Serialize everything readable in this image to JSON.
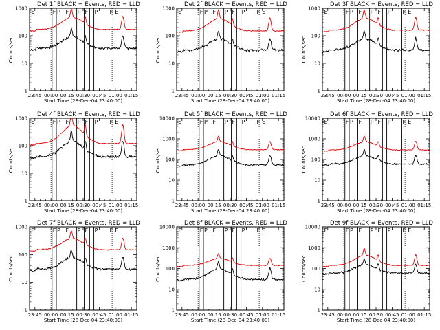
{
  "figure": {
    "time_ticks": [
      "23:45",
      "00:00",
      "00:15",
      "00:30",
      "00:45",
      "01:00",
      "01:15"
    ],
    "y_ticks": [
      "1",
      "10",
      "100",
      "1000"
    ],
    "y_ticks_wide": [
      "1",
      "10",
      "100",
      "1000",
      "10000"
    ],
    "flag_letters": [
      "E",
      "F",
      "P",
      "F",
      "P",
      "F",
      "P",
      "F",
      "E"
    ]
  },
  "chart_data": [
    {
      "type": "line",
      "title": "Det 1f BLACK = Events, RED = LLD",
      "xlabel": "Start Time (28-Dec-04 23:40:00)",
      "ylabel": "Counts/sec",
      "ylim": [
        1,
        1000
      ],
      "yscale": "log",
      "xlim_minutes_after_start": [
        0,
        100
      ],
      "series": [
        {
          "name": "Events",
          "color": "#000000",
          "baseline": 35,
          "peak": 110
        },
        {
          "name": "LLD",
          "color": "#dd0000",
          "baseline": 170,
          "peak": 560
        }
      ],
      "interval_lines_min": [
        21,
        25,
        33,
        44,
        51,
        56,
        60,
        74,
        76
      ]
    },
    {
      "type": "line",
      "title": "Det 2f BLACK = Events, RED = LLD",
      "xlabel": "Start Time (28-Dec-04 23:40:00)",
      "ylabel": "Counts/sec",
      "ylim": [
        1,
        1000
      ],
      "yscale": "log",
      "xlim_minutes_after_start": [
        0,
        100
      ],
      "series": [
        {
          "name": "Events",
          "color": "#000000",
          "baseline": 30,
          "peak": 90
        },
        {
          "name": "LLD",
          "color": "#dd0000",
          "baseline": 150,
          "peak": 500
        }
      ],
      "interval_lines_min": [
        21,
        25,
        33,
        44,
        51,
        56,
        60,
        74,
        76
      ]
    },
    {
      "type": "line",
      "title": "Det 3f BLACK = Events, RED = LLD",
      "xlabel": "Start Time (28-Dec-04 23:40:00)",
      "ylabel": "Counts/sec",
      "ylim": [
        1,
        1000
      ],
      "yscale": "log",
      "xlim_minutes_after_start": [
        0,
        100
      ],
      "series": [
        {
          "name": "Events",
          "color": "#000000",
          "baseline": 30,
          "peak": 90
        },
        {
          "name": "LLD",
          "color": "#dd0000",
          "baseline": 160,
          "peak": 520
        }
      ],
      "interval_lines_min": [
        21,
        25,
        33,
        44,
        51,
        56,
        60,
        74,
        76
      ]
    },
    {
      "type": "line",
      "title": "Det 4f BLACK = Events, RED = LLD",
      "xlabel": "Start Time (28-Dec-04 23:40:00)",
      "ylabel": "Counts/sec",
      "ylim": [
        1,
        1000
      ],
      "yscale": "log",
      "xlim_minutes_after_start": [
        0,
        100
      ],
      "series": [
        {
          "name": "Events",
          "color": "#000000",
          "baseline": 40,
          "peak": 180
        },
        {
          "name": "LLD",
          "color": "#dd0000",
          "baseline": 120,
          "peak": 700
        }
      ],
      "interval_lines_min": [
        21,
        25,
        33,
        44,
        51,
        56,
        60,
        74,
        76
      ]
    },
    {
      "type": "line",
      "title": "Det 5f BLACK = Events, RED = LLD",
      "xlabel": "Start Time (28-Dec-04 23:40:00)",
      "ylabel": "Counts/sec",
      "ylim": [
        1,
        10000
      ],
      "yscale": "log",
      "xlim_minutes_after_start": [
        0,
        100
      ],
      "series": [
        {
          "name": "Events",
          "color": "#000000",
          "baseline": 55,
          "peak": 180
        },
        {
          "name": "LLD",
          "color": "#dd0000",
          "baseline": 300,
          "peak": 850
        }
      ],
      "interval_lines_min": [
        21,
        25,
        33,
        44,
        51,
        56,
        60,
        74,
        76
      ]
    },
    {
      "type": "line",
      "title": "Det 6f BLACK = Events, RED = LLD",
      "xlabel": "Start Time (28-Dec-04 23:40:00)",
      "ylabel": "Counts/sec",
      "ylim": [
        1,
        10000
      ],
      "yscale": "log",
      "xlim_minutes_after_start": [
        0,
        100
      ],
      "series": [
        {
          "name": "Events",
          "color": "#000000",
          "baseline": 60,
          "peak": 180
        },
        {
          "name": "LLD",
          "color": "#dd0000",
          "baseline": 290,
          "peak": 850
        }
      ],
      "interval_lines_min": [
        21,
        25,
        33,
        44,
        51,
        56,
        60,
        74,
        76
      ]
    },
    {
      "type": "line",
      "title": "Det 7f BLACK = Events, RED = LLD",
      "xlabel": "Start Time (28-Dec-04 23:40:00)",
      "ylabel": "Counts/sec",
      "ylim": [
        1,
        1000
      ],
      "yscale": "log",
      "xlim_minutes_after_start": [
        0,
        100
      ],
      "series": [
        {
          "name": "Events",
          "color": "#000000",
          "baseline": 30,
          "peak": 90
        },
        {
          "name": "LLD",
          "color": "#dd0000",
          "baseline": 150,
          "peak": 450
        }
      ],
      "interval_lines_min": [
        21,
        25,
        33,
        44,
        51,
        56,
        60,
        74,
        76
      ]
    },
    {
      "type": "line",
      "title": "Det 8f BLACK = Events, RED = LLD",
      "xlabel": "Start Time (28-Dec-04 23:40:00)",
      "ylabel": "Counts/sec",
      "ylim": [
        1,
        10000
      ],
      "yscale": "log",
      "xlim_minutes_after_start": [
        0,
        100
      ],
      "series": [
        {
          "name": "Events",
          "color": "#000000",
          "baseline": 30,
          "peak": 120
        },
        {
          "name": "LLD",
          "color": "#dd0000",
          "baseline": 140,
          "peak": 350
        }
      ],
      "interval_lines_min": [
        21,
        25,
        33,
        44,
        51,
        56,
        60,
        74,
        76
      ]
    },
    {
      "type": "line",
      "title": "Det 9f BLACK = Events, RED = LLD",
      "xlabel": "Start Time (28-Dec-04 23:40:00)",
      "ylabel": "Counts/sec",
      "ylim": [
        1,
        10000
      ],
      "yscale": "log",
      "xlim_minutes_after_start": [
        0,
        100
      ],
      "series": [
        {
          "name": "Events",
          "color": "#000000",
          "baseline": 60,
          "peak": 180
        },
        {
          "name": "LLD",
          "color": "#dd0000",
          "baseline": 140,
          "peak": 520
        }
      ],
      "interval_lines_min": [
        21,
        25,
        33,
        44,
        51,
        56,
        60,
        74,
        76
      ]
    }
  ]
}
